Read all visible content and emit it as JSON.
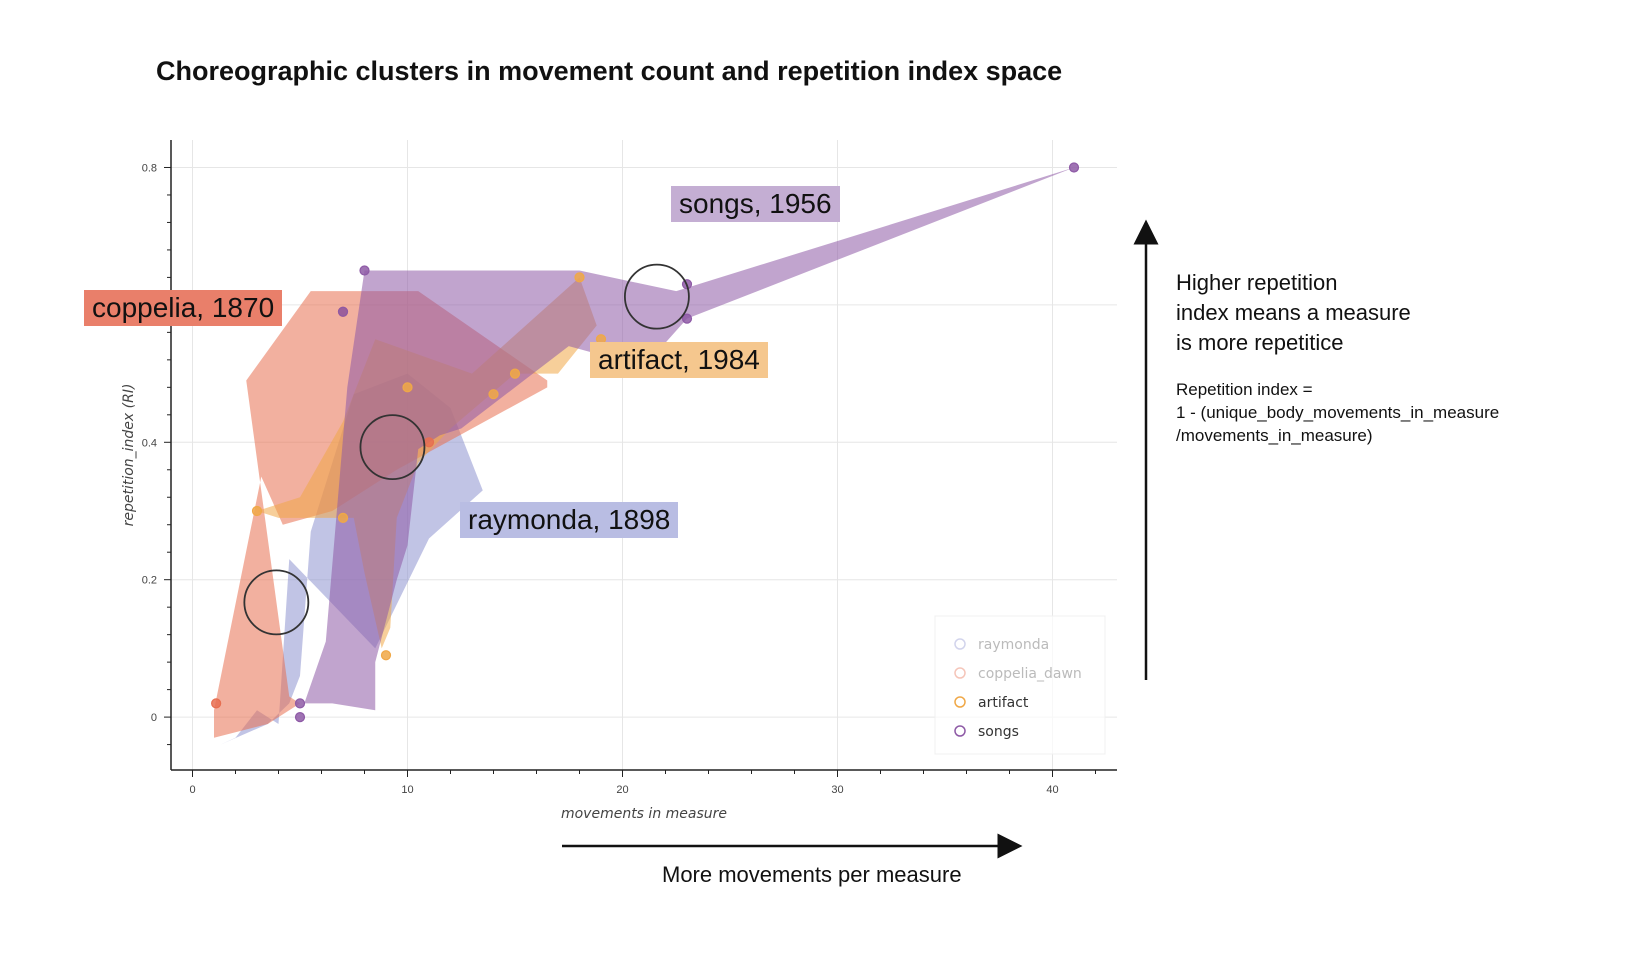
{
  "title": "Choreographic clusters in movement count and repetition index space",
  "chart_data": {
    "type": "scatter",
    "xlabel": "movements in measure",
    "ylabel": "repetition_index (RI)",
    "xlim": [
      -1,
      43
    ],
    "ylim": [
      -0.077,
      0.84
    ],
    "xticks": [
      0,
      10,
      20,
      30,
      40
    ],
    "yticks": [
      0,
      0.2,
      0.4,
      0.8
    ],
    "grid": true,
    "legend_position": "bottom-right",
    "series": [
      {
        "name": "raymonda",
        "color": "#8e94cf",
        "legend_dimmed": true,
        "hull": [
          [
            1.3,
            -0.04
          ],
          [
            3.5,
            -0.01
          ],
          [
            4.5,
            0.02
          ],
          [
            5.0,
            0.06
          ],
          [
            5.5,
            0.27
          ],
          [
            7.5,
            0.47
          ],
          [
            10,
            0.5
          ],
          [
            12,
            0.45
          ],
          [
            13.5,
            0.33
          ],
          [
            11,
            0.26
          ],
          [
            8.5,
            0.1
          ],
          [
            4.5,
            0.23
          ],
          [
            4.0,
            -0.01
          ],
          [
            3.0,
            0.01
          ],
          [
            2.0,
            -0.03
          ]
        ],
        "points": []
      },
      {
        "name": "coppelia_dawn",
        "color": "#e76f51",
        "legend_dimmed": true,
        "hull": [
          [
            2.5,
            0.49
          ],
          [
            5.5,
            0.62
          ],
          [
            10.5,
            0.62
          ],
          [
            16.5,
            0.49
          ],
          [
            16.5,
            0.48
          ],
          [
            9.5,
            0.36
          ],
          [
            6.5,
            0.3
          ],
          [
            4.2,
            0.28
          ],
          [
            3.2,
            0.35
          ],
          [
            1.0,
            0.01
          ],
          [
            1.0,
            -0.03
          ],
          [
            3.5,
            -0.01
          ],
          [
            5.0,
            0.02
          ],
          [
            4.5,
            0.03
          ]
        ],
        "points": [
          [
            7,
            0.59
          ],
          [
            11,
            0.4
          ],
          [
            1.1,
            0.02
          ]
        ]
      },
      {
        "name": "artifact",
        "color": "#f0a847",
        "legend_dimmed": false,
        "hull": [
          [
            3,
            0.3
          ],
          [
            5,
            0.32
          ],
          [
            7,
            0.43
          ],
          [
            8.5,
            0.55
          ],
          [
            13,
            0.5
          ],
          [
            18,
            0.64
          ],
          [
            18.8,
            0.57
          ],
          [
            17,
            0.5
          ],
          [
            15,
            0.5
          ],
          [
            12,
            0.42
          ],
          [
            10.5,
            0.37
          ],
          [
            9.5,
            0.29
          ],
          [
            9.2,
            0.13
          ],
          [
            8.8,
            0.1
          ],
          [
            8,
            0.21
          ],
          [
            7.5,
            0.29
          ],
          [
            6.5,
            0.29
          ],
          [
            4,
            0.29
          ]
        ],
        "points": [
          [
            3,
            0.3
          ],
          [
            7,
            0.29
          ],
          [
            9,
            0.09
          ],
          [
            14,
            0.47
          ],
          [
            15,
            0.5
          ],
          [
            18,
            0.64
          ],
          [
            19,
            0.55
          ],
          [
            10,
            0.48
          ]
        ]
      },
      {
        "name": "songs",
        "color": "#8e5aa6",
        "legend_dimmed": false,
        "hull": [
          [
            5.2,
            0.02
          ],
          [
            6.2,
            0.11
          ],
          [
            7.2,
            0.48
          ],
          [
            8,
            0.65
          ],
          [
            18,
            0.65
          ],
          [
            22.5,
            0.62
          ],
          [
            41,
            0.8
          ],
          [
            23,
            0.58
          ],
          [
            21,
            0.51
          ],
          [
            17.5,
            0.54
          ],
          [
            12.5,
            0.42
          ],
          [
            11.5,
            0.41
          ],
          [
            10.5,
            0.39
          ],
          [
            10,
            0.25
          ],
          [
            9.5,
            0.2
          ],
          [
            8.5,
            0.08
          ],
          [
            8.5,
            0.01
          ],
          [
            6.5,
            0.02
          ],
          [
            5.5,
            0.02
          ]
        ],
        "points": [
          [
            8,
            0.65
          ],
          [
            23,
            0.63
          ],
          [
            23,
            0.58
          ],
          [
            41,
            0.8
          ],
          [
            5,
            0.02
          ],
          [
            5,
            0.0
          ],
          [
            7,
            0.59
          ]
        ]
      }
    ],
    "circle_highlights": [
      {
        "x": 21.6,
        "y": 0.612
      },
      {
        "x": 9.3,
        "y": 0.393
      },
      {
        "x": 3.9,
        "y": 0.167
      }
    ],
    "annotations": [
      {
        "text": "songs, 1956",
        "series": "songs",
        "color": "#c4aed3"
      },
      {
        "text": "coppelia, 1870",
        "series": "coppelia_dawn",
        "color": "#e97f6a"
      },
      {
        "text": "artifact, 1984",
        "series": "artifact",
        "color": "#f5c78e"
      },
      {
        "text": "raymonda, 1898",
        "series": "raymonda",
        "color": "#b9bde3"
      }
    ]
  },
  "side_note": {
    "lines": [
      "Higher repetition",
      "index means a measure",
      "is more repetitice"
    ],
    "formula_lines": [
      "Repetition index =",
      "1 - (unique_body_movements_in_measure",
      "/movements_in_measure)"
    ]
  },
  "x_note": "More movements per measure"
}
